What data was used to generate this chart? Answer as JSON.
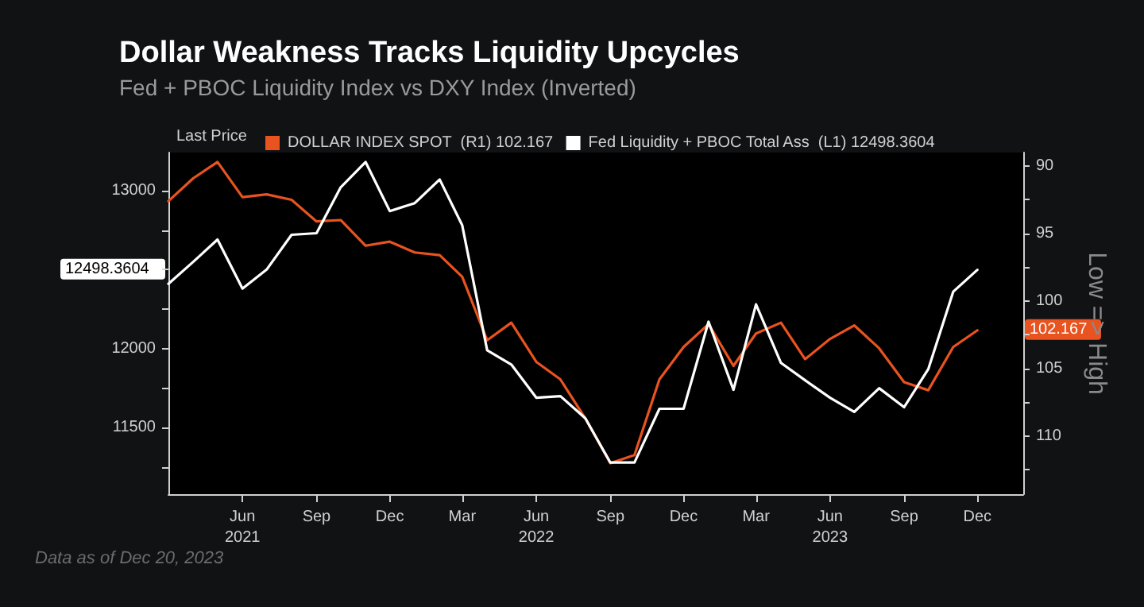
{
  "chart_data": {
    "type": "line",
    "title": "Dollar Weakness Tracks Liquidity Upcycles",
    "subtitle": "Fed + PBOC Liquidity Index vs DXY Index (Inverted)",
    "legend_title": "Last Price",
    "y2label": "Low => High",
    "x": [
      "2021-03",
      "2021-04",
      "2021-05",
      "2021-06",
      "2021-07",
      "2021-08",
      "2021-09",
      "2021-10",
      "2021-11",
      "2021-12",
      "2022-01",
      "2022-02",
      "2022-03",
      "2022-04",
      "2022-05",
      "2022-06",
      "2022-07",
      "2022-08",
      "2022-09",
      "2022-10",
      "2022-11",
      "2022-12",
      "2023-01",
      "2023-02",
      "2023-03",
      "2023-04",
      "2023-05",
      "2023-06",
      "2023-07",
      "2023-08",
      "2023-09",
      "2023-10",
      "2023-11",
      "2023-12"
    ],
    "series": [
      {
        "name": "DOLLAR INDEX SPOT  (R1) 102.167",
        "color": "#e8531f",
        "axis": "y2",
        "values": [
          92.6,
          90.9,
          89.7,
          92.3,
          92.1,
          92.5,
          94.1,
          94.0,
          95.9,
          95.6,
          96.4,
          96.6,
          98.2,
          102.9,
          101.6,
          104.5,
          105.8,
          108.7,
          112.0,
          111.4,
          105.8,
          103.4,
          101.7,
          104.8,
          102.4,
          101.6,
          104.3,
          102.8,
          101.8,
          103.5,
          106.0,
          106.6,
          103.4,
          102.167
        ]
      },
      {
        "name": "Fed Liquidity + PBOC Total Ass  (L1) 12498.3604",
        "color": "#ffffff",
        "values": [
          12410,
          12550,
          12690,
          12380,
          12500,
          12720,
          12730,
          13020,
          13180,
          12870,
          12920,
          13070,
          12780,
          11990,
          11900,
          11690,
          11700,
          11560,
          11280,
          11280,
          11620,
          11620,
          12170,
          11740,
          12280,
          11910,
          11800,
          11690,
          11600,
          11750,
          11630,
          11870,
          12360,
          12498.3604
        ]
      }
    ],
    "xlim": [
      "2021-03",
      "2024-01-27"
    ],
    "xticks": [
      {
        "value": "2021-06",
        "label": "Jun\n2021"
      },
      {
        "value": "2021-09",
        "label": "Sep"
      },
      {
        "value": "2021-12",
        "label": "Dec"
      },
      {
        "value": "2022-03",
        "label": "Mar"
      },
      {
        "value": "2022-06",
        "label": "Jun\n2022"
      },
      {
        "value": "2022-09",
        "label": "Sep"
      },
      {
        "value": "2022-12",
        "label": "Dec"
      },
      {
        "value": "2023-03",
        "label": "Mar"
      },
      {
        "value": "2023-06",
        "label": "Jun\n2023"
      },
      {
        "value": "2023-09",
        "label": "Sep"
      },
      {
        "value": "2023-12",
        "label": "Dec"
      }
    ],
    "ylim": [
      11080,
      13240
    ],
    "yticks": [
      {
        "value": 11250,
        "label": null
      },
      11500,
      {
        "value": 11750,
        "label": null
      },
      12000,
      {
        "value": 12250,
        "label": null
      },
      {
        "value": 12500,
        "label": null
      },
      {
        "value": 12750,
        "label": null
      },
      13000
    ],
    "y2lim": [
      114.3,
      89.0
    ],
    "y2ticks": [
      90,
      {
        "value": 92.5,
        "label": null
      },
      95,
      {
        "value": 97.5,
        "label": null
      },
      100,
      {
        "value": 102.5,
        "label": null
      },
      105,
      {
        "value": 107.5,
        "label": null
      },
      110,
      {
        "value": 112.5,
        "label": null
      }
    ],
    "legend": "top left",
    "grid": false,
    "marker": "none",
    "line_style": "solid",
    "annotations": [
      "102.167",
      "12498.3604",
      "Data as of Dec 20, 2023"
    ]
  }
}
